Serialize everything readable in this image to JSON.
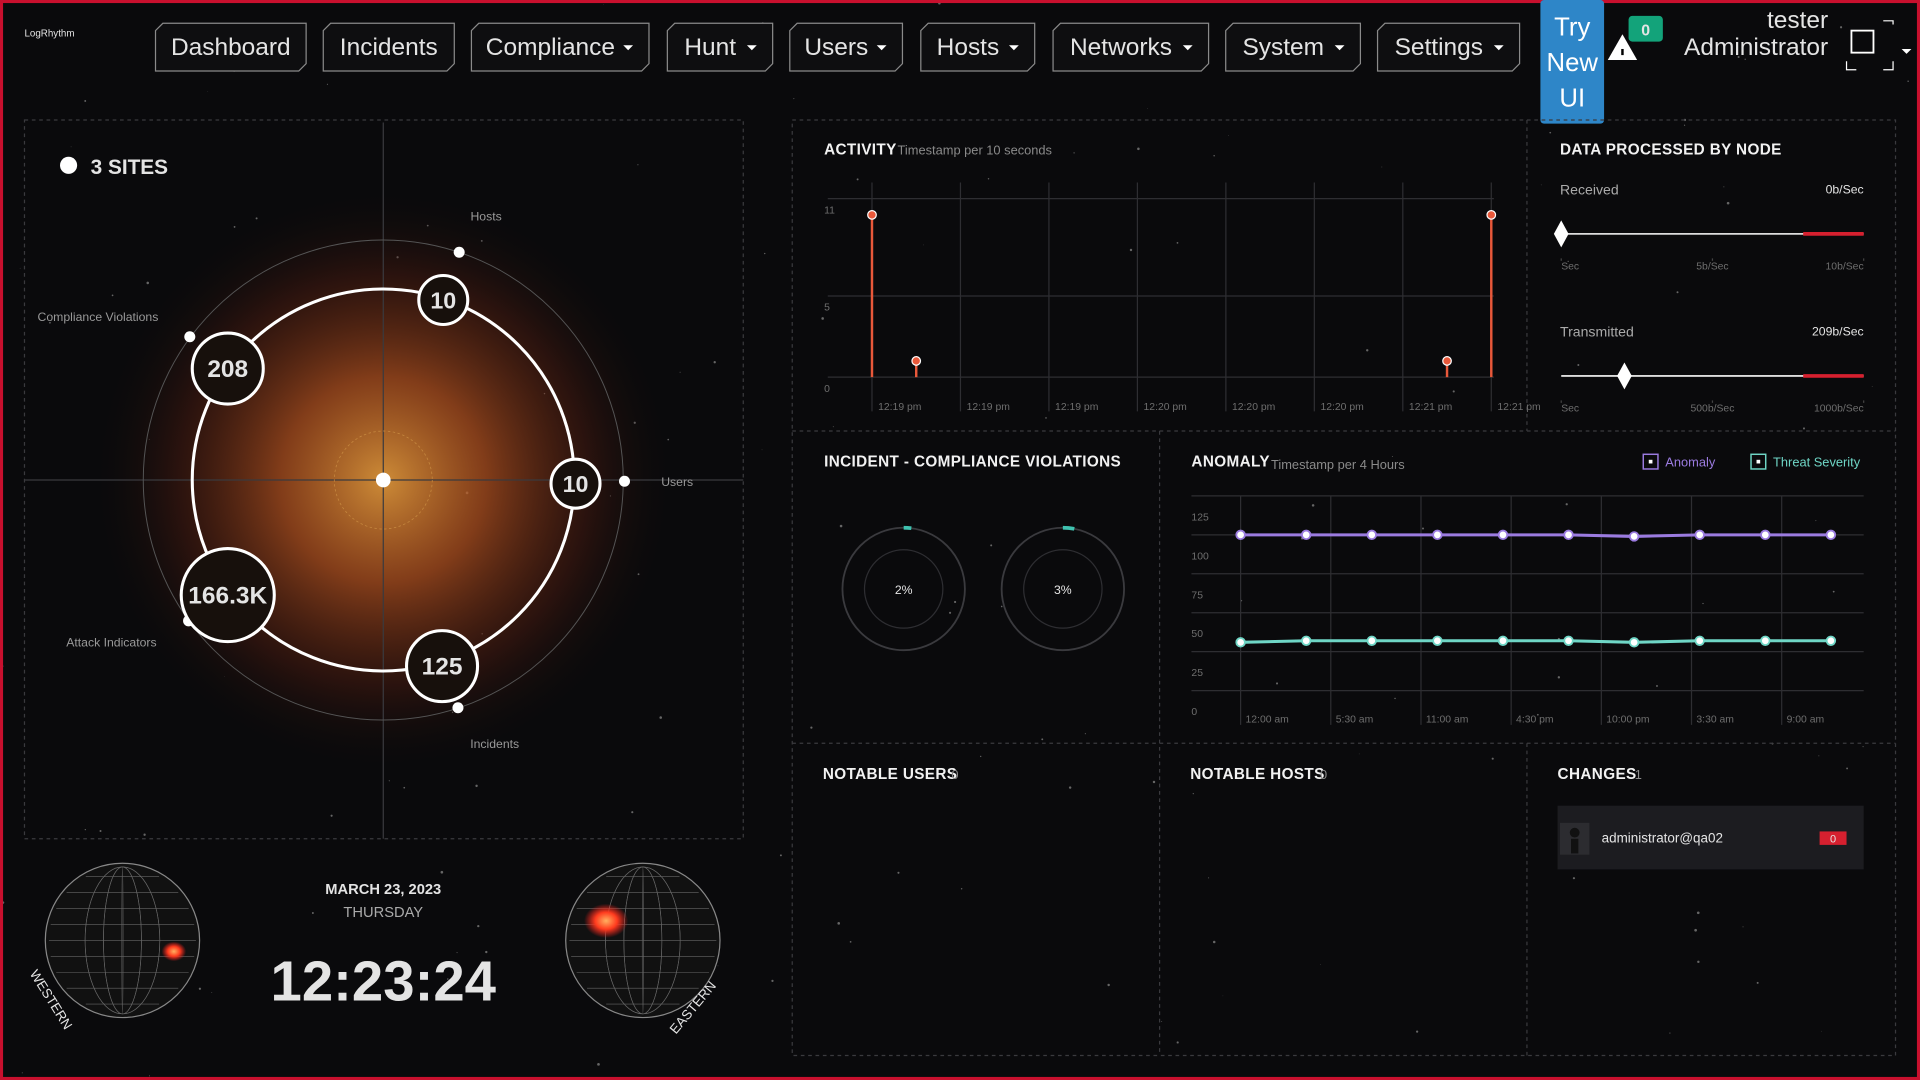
{
  "header": {
    "logo": "LogRhythm",
    "nav": [
      "Dashboard",
      "Incidents",
      "Compliance",
      "Hunt",
      "Users",
      "Hosts",
      "Networks",
      "System",
      "Settings"
    ],
    "try_new_ui": "Try New UI",
    "alert_count": "0",
    "user": "tester",
    "role": "Administrator"
  },
  "sites": {
    "title": "3 SITES",
    "nodes": [
      {
        "label": "Hosts",
        "value": "10"
      },
      {
        "label": "Users",
        "value": "10"
      },
      {
        "label": "Incidents",
        "value": "125"
      },
      {
        "label": "Attack Indicators",
        "value": "166.3K"
      },
      {
        "label": "Compliance Violations",
        "value": "208"
      }
    ]
  },
  "chart_data": [
    {
      "type": "lollipop",
      "title": "ACTIVITY",
      "subtitle": "Timestamp per 10 seconds",
      "x": [
        0,
        5,
        65,
        70
      ],
      "values": [
        10,
        1,
        1,
        10
      ],
      "color": "#e8583a",
      "xlim": [
        -5,
        75
      ],
      "xticks": [
        {
          "value": 0,
          "label": "12:19 pm"
        },
        {
          "value": 10,
          "label": "12:19 pm"
        },
        {
          "value": 20,
          "label": "12:19 pm"
        },
        {
          "value": 30,
          "label": "12:20 pm"
        },
        {
          "value": 40,
          "label": "12:20 pm"
        },
        {
          "value": 50,
          "label": "12:20 pm"
        },
        {
          "value": 60,
          "label": "12:21 pm"
        },
        {
          "value": 70,
          "label": "12:21 pm"
        }
      ],
      "ylim": [
        0,
        12
      ],
      "yticks": [
        0,
        5,
        11
      ],
      "grid": true
    },
    {
      "type": "gauge",
      "title": "DATA PROCESSED BY NODE",
      "series": [
        {
          "name": "Received",
          "values": [
            0
          ],
          "value_labels": [
            "0b/Sec"
          ],
          "xlim": [
            0,
            10
          ],
          "xticks": [
            {
              "value": 0,
              "label": "Sec"
            },
            {
              "value": 5,
              "label": "5b/Sec"
            },
            {
              "value": 10,
              "label": "10b/Sec"
            }
          ]
        },
        {
          "name": "Transmitted",
          "values": [
            209
          ],
          "value_labels": [
            "209b/Sec"
          ],
          "xlim": [
            0,
            1000
          ],
          "xticks": [
            {
              "value": 0,
              "label": "Sec"
            },
            {
              "value": 500,
              "label": "500b/Sec"
            },
            {
              "value": 1000,
              "label": "1000b/Sec"
            }
          ]
        }
      ]
    },
    {
      "type": "donut",
      "title": "INCIDENT - COMPLIANCE VIOLATIONS",
      "values": [
        2,
        3
      ],
      "value_labels": [
        "2%",
        "3%"
      ],
      "color": "#3fc2b0"
    },
    {
      "type": "line",
      "title": "ANOMALY",
      "subtitle": "Timestamp per 4 Hours",
      "x": [
        0,
        4,
        8,
        12,
        16,
        20,
        24,
        28,
        32,
        36
      ],
      "series": [
        {
          "name": "Anomaly",
          "color": "#9b7be0",
          "values": [
            100,
            100,
            100,
            100,
            100,
            100,
            99,
            100,
            100,
            100
          ]
        },
        {
          "name": "Threat Severity",
          "color": "#6fd6c6",
          "values": [
            31,
            32,
            32,
            32,
            32,
            32,
            31,
            32,
            32,
            32
          ]
        }
      ],
      "xlim": [
        -3,
        38
      ],
      "xticks": [
        {
          "value": 0,
          "label": "12:00 am"
        },
        {
          "value": 5.5,
          "label": "5:30 am"
        },
        {
          "value": 11,
          "label": "11:00 am"
        },
        {
          "value": 16.5,
          "label": "4:30 pm"
        },
        {
          "value": 22,
          "label": "10:00 pm"
        },
        {
          "value": 27.5,
          "label": "3:30 am"
        },
        {
          "value": 33,
          "label": "9:00 am"
        }
      ],
      "ylim": [
        0,
        125
      ],
      "yticks": [
        0,
        25,
        50,
        75,
        100,
        125
      ],
      "grid": true
    }
  ],
  "notable_users": {
    "title": "NOTABLE USERS",
    "count": "0"
  },
  "notable_hosts": {
    "title": "NOTABLE HOSTS",
    "count": "0"
  },
  "changes": {
    "title": "CHANGES",
    "count": "1",
    "items": [
      {
        "user": "administrator@qa02",
        "badge": "0"
      }
    ]
  },
  "clock": {
    "date": "MARCH 23, 2023",
    "weekday": "THURSDAY",
    "time": "12:23:24",
    "west": "WESTERN",
    "east": "EASTERN"
  }
}
